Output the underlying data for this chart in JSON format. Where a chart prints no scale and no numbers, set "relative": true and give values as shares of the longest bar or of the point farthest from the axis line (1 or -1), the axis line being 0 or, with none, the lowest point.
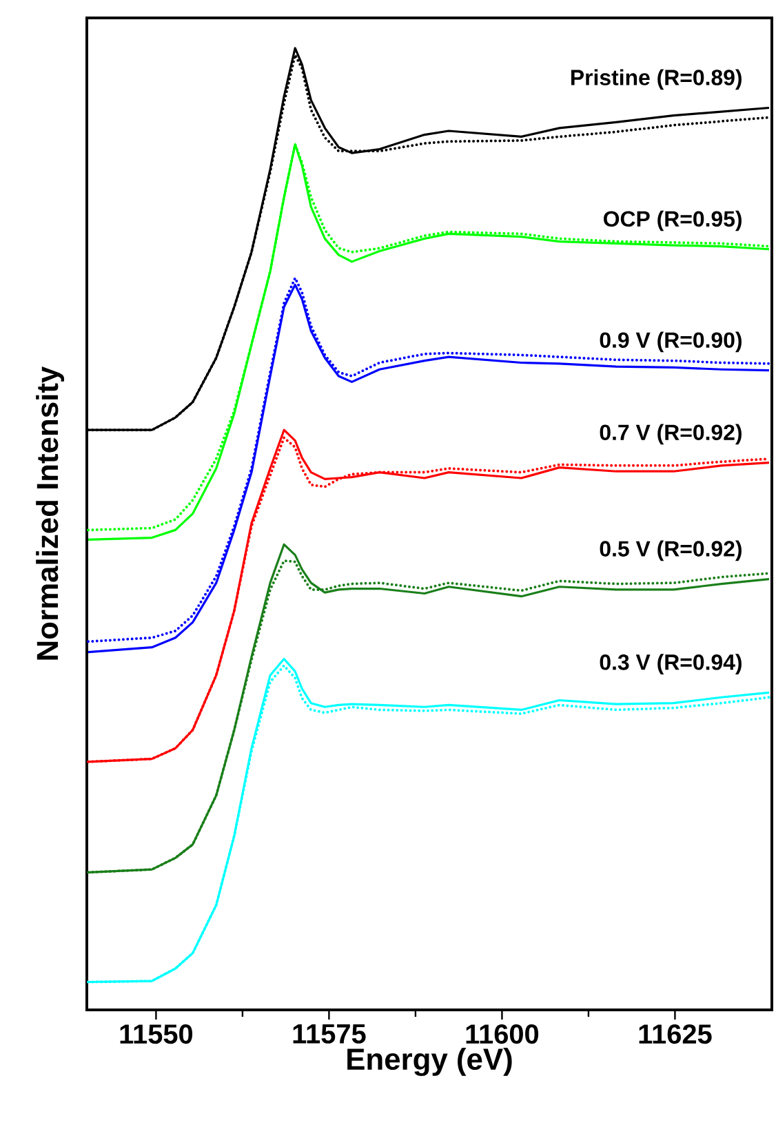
{
  "chart_data": {
    "type": "line",
    "xlabel": "Energy (eV)",
    "ylabel": "Normalized Intensity",
    "relative": true,
    "legend": false,
    "grid": false,
    "xlim": [
      11540,
      11639
    ],
    "xticks": [
      11550,
      11575,
      11600,
      11625
    ],
    "x": [
      11540.2,
      11549.4,
      11552.8,
      11555.3,
      11558.7,
      11561.3,
      11563.8,
      11566.5,
      11568.5,
      11570.1,
      11571.1,
      11572.4,
      11574.4,
      11576.4,
      11578.3,
      11582.3,
      11588.8,
      11592.3,
      11602.8,
      11608.3,
      11616.5,
      11624.8,
      11631.7,
      11638.6
    ],
    "series": [
      {
        "name": "Pristine (R=0.89)",
        "color": "#000000",
        "line_style": "solid",
        "values": [
          0.603,
          0.603,
          0.616,
          0.632,
          0.678,
          0.731,
          0.788,
          0.874,
          0.95,
          1.0,
          0.983,
          0.946,
          0.917,
          0.897,
          0.891,
          0.895,
          0.91,
          0.914,
          0.908,
          0.917,
          0.923,
          0.93,
          0.934,
          0.938
        ]
      },
      {
        "color": "#000000",
        "line_style": "dotted",
        "values": [
          0.603,
          0.603,
          0.616,
          0.632,
          0.678,
          0.731,
          0.788,
          0.871,
          0.943,
          0.993,
          0.979,
          0.936,
          0.907,
          0.893,
          0.893,
          0.893,
          0.901,
          0.903,
          0.904,
          0.908,
          0.913,
          0.92,
          0.924,
          0.928
        ]
      },
      {
        "name": "OCP (R=0.95)",
        "color": "#00ff00",
        "line_style": "solid",
        "values": [
          0.489,
          0.491,
          0.499,
          0.516,
          0.563,
          0.62,
          0.692,
          0.768,
          0.845,
          0.9,
          0.878,
          0.835,
          0.802,
          0.785,
          0.778,
          0.789,
          0.802,
          0.807,
          0.804,
          0.799,
          0.797,
          0.795,
          0.794,
          0.791
        ]
      },
      {
        "color": "#00ff00",
        "line_style": "dotted",
        "values": [
          0.499,
          0.501,
          0.51,
          0.53,
          0.573,
          0.623,
          0.692,
          0.768,
          0.845,
          0.9,
          0.881,
          0.845,
          0.811,
          0.792,
          0.788,
          0.792,
          0.805,
          0.809,
          0.807,
          0.802,
          0.799,
          0.798,
          0.797,
          0.794
        ]
      },
      {
        "name": "0.9 V (R=0.90)",
        "color": "#0000ff",
        "line_style": "solid",
        "values": [
          0.372,
          0.377,
          0.387,
          0.403,
          0.444,
          0.499,
          0.559,
          0.659,
          0.731,
          0.754,
          0.739,
          0.706,
          0.678,
          0.659,
          0.653,
          0.666,
          0.675,
          0.679,
          0.673,
          0.672,
          0.669,
          0.668,
          0.666,
          0.665
        ]
      },
      {
        "color": "#0000ff",
        "line_style": "dotted",
        "values": [
          0.383,
          0.387,
          0.394,
          0.41,
          0.451,
          0.503,
          0.563,
          0.663,
          0.735,
          0.761,
          0.746,
          0.711,
          0.681,
          0.663,
          0.659,
          0.673,
          0.682,
          0.683,
          0.681,
          0.679,
          0.676,
          0.675,
          0.673,
          0.672
        ]
      },
      {
        "name": "0.7 V (R=0.92)",
        "color": "#ff0000",
        "line_style": "solid",
        "values": [
          0.258,
          0.261,
          0.272,
          0.291,
          0.348,
          0.415,
          0.506,
          0.563,
          0.603,
          0.592,
          0.574,
          0.559,
          0.552,
          0.553,
          0.554,
          0.559,
          0.553,
          0.559,
          0.553,
          0.564,
          0.56,
          0.56,
          0.566,
          0.569
        ]
      },
      {
        "color": "#ff0000",
        "line_style": "dotted",
        "values": [
          0.258,
          0.261,
          0.272,
          0.291,
          0.348,
          0.415,
          0.503,
          0.556,
          0.595,
          0.585,
          0.563,
          0.546,
          0.544,
          0.552,
          0.557,
          0.559,
          0.559,
          0.563,
          0.559,
          0.567,
          0.566,
          0.566,
          0.57,
          0.573
        ]
      },
      {
        "name": "0.5 V (R=0.92)",
        "color": "#1a7f1a",
        "line_style": "solid",
        "values": [
          0.143,
          0.146,
          0.158,
          0.172,
          0.223,
          0.291,
          0.367,
          0.444,
          0.484,
          0.473,
          0.458,
          0.444,
          0.434,
          0.437,
          0.438,
          0.438,
          0.433,
          0.44,
          0.43,
          0.44,
          0.437,
          0.437,
          0.443,
          0.448
        ]
      },
      {
        "color": "#1a7f1a",
        "line_style": "dotted",
        "values": [
          0.143,
          0.146,
          0.158,
          0.172,
          0.223,
          0.291,
          0.364,
          0.437,
          0.467,
          0.466,
          0.451,
          0.437,
          0.437,
          0.441,
          0.443,
          0.444,
          0.438,
          0.444,
          0.436,
          0.446,
          0.443,
          0.444,
          0.45,
          0.454
        ]
      },
      {
        "name": "0.3 V (R=0.94)",
        "color": "#00ffff",
        "line_style": "solid",
        "values": [
          0.029,
          0.03,
          0.043,
          0.059,
          0.109,
          0.181,
          0.272,
          0.348,
          0.365,
          0.352,
          0.334,
          0.319,
          0.315,
          0.317,
          0.318,
          0.317,
          0.315,
          0.317,
          0.312,
          0.322,
          0.318,
          0.319,
          0.325,
          0.33
        ]
      },
      {
        "color": "#00ffff",
        "line_style": "dotted",
        "values": [
          0.029,
          0.03,
          0.043,
          0.059,
          0.109,
          0.181,
          0.269,
          0.341,
          0.358,
          0.345,
          0.324,
          0.312,
          0.309,
          0.312,
          0.315,
          0.312,
          0.311,
          0.312,
          0.308,
          0.317,
          0.312,
          0.314,
          0.319,
          0.325
        ]
      }
    ]
  }
}
